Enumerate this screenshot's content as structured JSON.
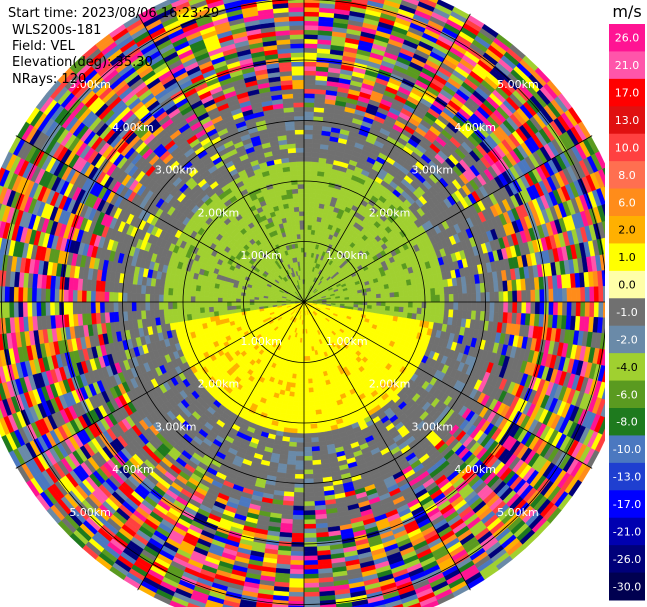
{
  "header": {
    "start_time": "Start time: 2023/08/06 16:23:29",
    "instrument": "WLS200s-181",
    "field": "Field: VEL",
    "elevation": "Elevation(deg): 35.30",
    "nrays": "NRays: 120"
  },
  "chart_data": {
    "type": "heatmap",
    "subtype": "ppi-polar",
    "field": "VEL",
    "range_rings_km": [
      1,
      2,
      3,
      4,
      5
    ],
    "range_labels": [
      "1.00km",
      "2.00km",
      "3.00km",
      "4.00km",
      "5.00km"
    ],
    "max_range_km": 5.5,
    "radial_spokes_deg": [
      0,
      30,
      60,
      90,
      120,
      150,
      180,
      210,
      240,
      270,
      300,
      330
    ],
    "colorbar": {
      "unit": "m/s",
      "ticks": [
        "26.0",
        "21.0",
        "17.0",
        "13.0",
        "10.0",
        "8.0",
        "6.0",
        "2.0",
        "1.0",
        "0.0",
        "-1.0",
        "-2.0",
        "-4.0",
        "-6.0",
        "-8.0",
        "-10.0",
        "-13.0",
        "-17.0",
        "-21.0",
        "-26.0",
        "-30.0"
      ],
      "colors": [
        "#ff1493",
        "#ff55aa",
        "#ff0000",
        "#e01010",
        "#ff4040",
        "#ff6f50",
        "#ff8c1a",
        "#ffb000",
        "#ffff00",
        "#ffffa8",
        "#707070",
        "#6a8aa8",
        "#a0d030",
        "#5a9a20",
        "#1e7a1e",
        "#4b78c0",
        "#1f3fd0",
        "#0000ff",
        "#0000b0",
        "#00007a",
        "#000050"
      ]
    },
    "regions": [
      {
        "label": "approaching (negative velocity)",
        "sector": "north",
        "range_km": [
          0,
          2.4
        ],
        "value": -2.0
      },
      {
        "label": "receding (positive velocity)",
        "sector": "south",
        "range_km": [
          0,
          2.2
        ],
        "value": 1.0
      },
      {
        "label": "near-zero velocity",
        "range_km": [
          2.2,
          3.2
        ],
        "value": 0.0
      },
      {
        "label": "noise",
        "range_km": [
          3.2,
          5.5
        ],
        "value": "random"
      }
    ]
  }
}
